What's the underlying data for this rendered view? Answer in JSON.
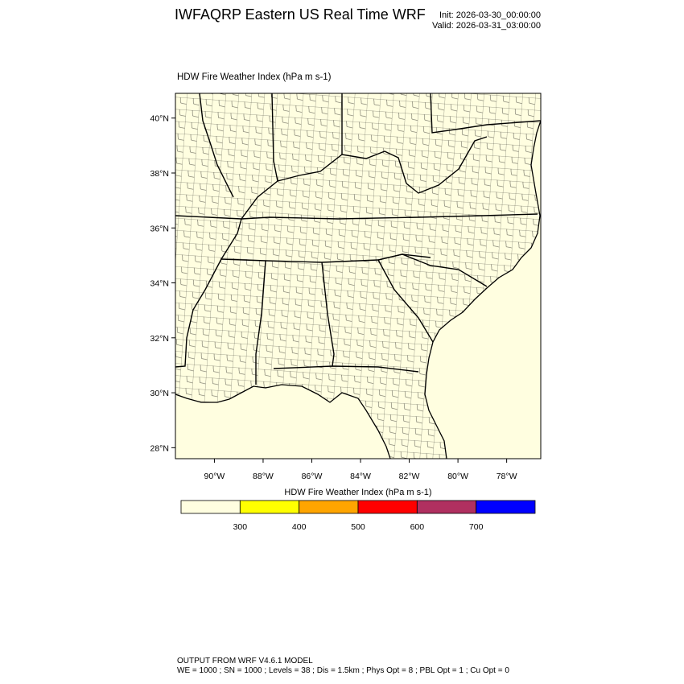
{
  "header": {
    "title": "IWFAQRP Eastern US Real Time WRF",
    "init": "Init: 2026-03-30_00:00:00",
    "valid": "Valid: 2026-03-31_03:00:00"
  },
  "plot": {
    "subtitle": "HDW Fire Weather Index   (hPa m s-1)",
    "lon_range": [
      -91.6,
      -76.6
    ],
    "lat_range": [
      27.6,
      40.9
    ],
    "lat_ticks": [
      {
        "value": 40,
        "label": "40°N"
      },
      {
        "value": 38,
        "label": "38°N"
      },
      {
        "value": 36,
        "label": "36°N"
      },
      {
        "value": 34,
        "label": "34°N"
      },
      {
        "value": 32,
        "label": "32°N"
      },
      {
        "value": 30,
        "label": "30°N"
      },
      {
        "value": 28,
        "label": "28°N"
      }
    ],
    "lon_ticks": [
      {
        "value": -90,
        "label": "90°W"
      },
      {
        "value": -88,
        "label": "88°W"
      },
      {
        "value": -86,
        "label": "86°W"
      },
      {
        "value": -84,
        "label": "84°W"
      },
      {
        "value": -82,
        "label": "82°W"
      },
      {
        "value": -80,
        "label": "80°W"
      },
      {
        "value": -78,
        "label": "78°W"
      }
    ],
    "field_fill": "#fffee0",
    "features": "state boundaries, county boundaries, coastline"
  },
  "colorbar": {
    "title": "HDW Fire Weather Index (hPa m s-1)",
    "bins": [
      {
        "color": "#fffee0"
      },
      {
        "color": "#ffff00"
      },
      {
        "color": "#ffa500"
      },
      {
        "color": "#ff0000"
      },
      {
        "color": "#b03060"
      },
      {
        "color": "#0000ff"
      }
    ],
    "labels": [
      "300",
      "400",
      "500",
      "600",
      "700"
    ]
  },
  "footer": {
    "line1": "OUTPUT FROM WRF V4.6.1 MODEL",
    "line2": "WE = 1000 ; SN = 1000 ; Levels = 38 ; Dis = 1.5km ; Phys Opt = 8 ; PBL Opt = 1 ; Cu Opt = 0"
  }
}
